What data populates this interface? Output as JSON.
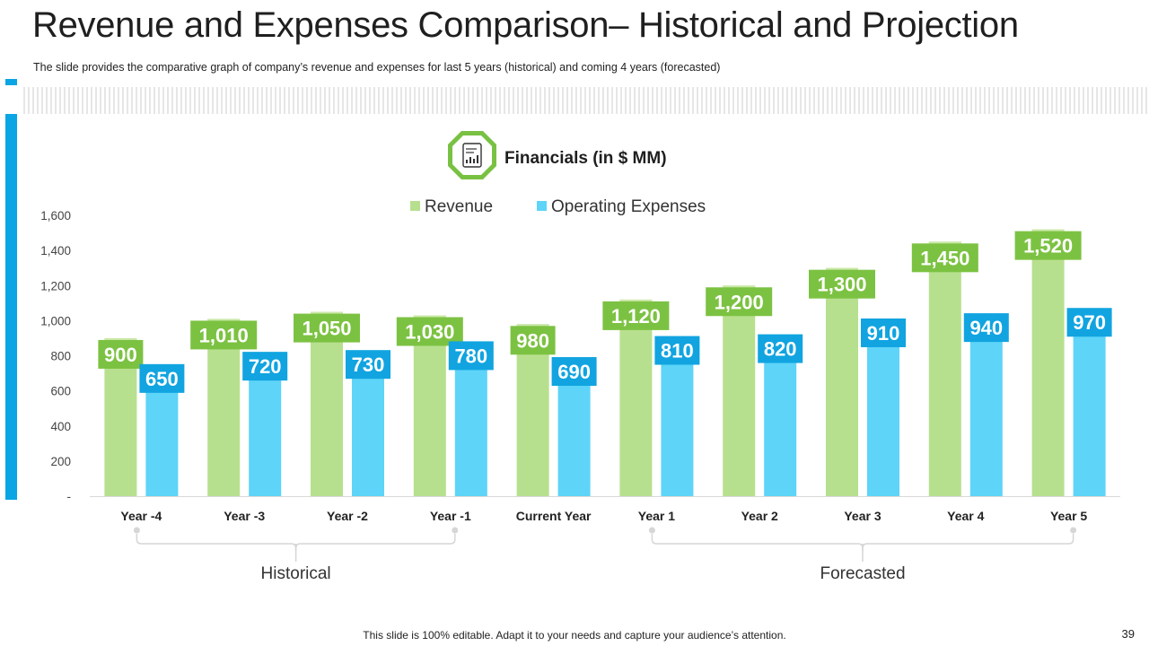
{
  "slide": {
    "title": "Revenue and Expenses Comparison– Historical and Projection",
    "subtitle": "The slide provides the comparative graph of company’s revenue and expenses for last 5 years (historical) and coming 4 years (forecasted)",
    "footer_note": "This slide is 100% editable. Adapt it to your needs and capture your audience’s attention.",
    "page_number": "39"
  },
  "colors": {
    "accent_blue": "#0aa5e4",
    "revenue_bar": "#b7e08e",
    "revenue_label": "#7cc242",
    "expense_bar": "#5dd4f8",
    "expense_label": "#11a4e0",
    "icon_green": "#79c143"
  },
  "icon": {
    "name": "financial-report-icon"
  },
  "chart_data": {
    "type": "bar",
    "title": "Financials (in $ MM)",
    "categories": [
      "Year -4",
      "Year -3",
      "Year -2",
      "Year -1",
      "Current Year",
      "Year 1",
      "Year 2",
      "Year 3",
      "Year 4",
      "Year 5"
    ],
    "series": [
      {
        "name": "Revenue",
        "values": [
          900,
          1010,
          1050,
          1030,
          980,
          1120,
          1200,
          1300,
          1450,
          1520
        ]
      },
      {
        "name": "Operating Expenses",
        "values": [
          650,
          720,
          730,
          780,
          690,
          810,
          820,
          910,
          940,
          970
        ]
      }
    ],
    "value_labels": {
      "Revenue": [
        "900",
        "1,010",
        "1,050",
        "1,030",
        "980",
        "1,120",
        "1,200",
        "1,300",
        "1,450",
        "1,520"
      ],
      "Operating Expenses": [
        "650",
        "720",
        "730",
        "780",
        "690",
        "810",
        "820",
        "910",
        "940",
        "970"
      ]
    },
    "ylim": [
      0,
      1600
    ],
    "yticks": [
      0,
      200,
      400,
      600,
      800,
      1000,
      1200,
      1400,
      1600
    ],
    "ytick_labels": [
      "-",
      "200",
      "400",
      "600",
      "800",
      "1,000",
      "1,200",
      "1,400",
      "1,600"
    ],
    "xlabel": "",
    "ylabel": "",
    "legend_position": "top-center",
    "grid": false,
    "groups": [
      {
        "label": "Historical",
        "from": "Year -4",
        "to": "Year -1"
      },
      {
        "label": "Forecasted",
        "from": "Year 1",
        "to": "Year 5"
      }
    ]
  }
}
